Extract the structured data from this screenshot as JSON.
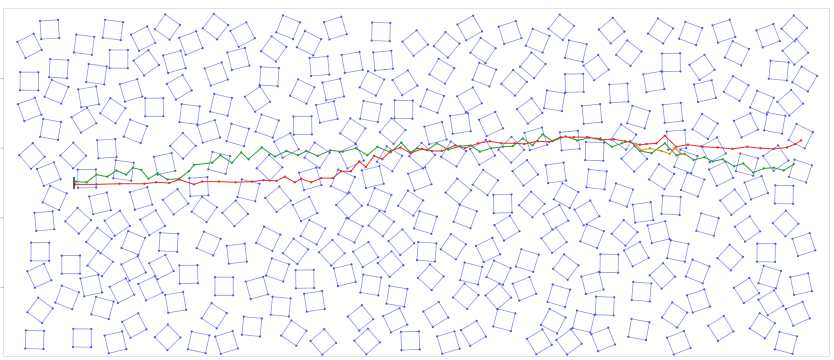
{
  "chart_data": {
    "type": "diagram",
    "title": "",
    "xlabel": "",
    "ylabel": "",
    "xlim": [
      0,
      1000
    ],
    "ylim": [
      0,
      500
    ],
    "grid": false,
    "legend": "none",
    "colors": {
      "obstacle": "#8f95e8",
      "obstacle_corner": "#4f57d8",
      "path_green": "#2e9a3a",
      "path_red": "#e0322e",
      "path_orange": "#e08a1a",
      "start_marker": "#111111",
      "frame": "#e2e2e2"
    },
    "y_ticks": [
      100,
      200,
      300,
      400
    ],
    "obstacles": {
      "count": 420,
      "shape": "rotated-square",
      "side": 22,
      "seed": 7
    },
    "paths": [
      {
        "name": "",
        "color": "#2e9a3a",
        "points": [
          [
            87,
            248
          ],
          [
            100,
            249
          ],
          [
            112,
            238
          ],
          [
            125,
            241
          ],
          [
            136,
            232
          ],
          [
            148,
            238
          ],
          [
            156,
            228
          ],
          [
            166,
            231
          ],
          [
            175,
            244
          ],
          [
            186,
            236
          ],
          [
            198,
            245
          ],
          [
            212,
            244
          ],
          [
            224,
            233
          ],
          [
            230,
            224
          ],
          [
            252,
            221
          ],
          [
            262,
            210
          ],
          [
            276,
            221
          ],
          [
            287,
            206
          ],
          [
            296,
            216
          ],
          [
            312,
            199
          ],
          [
            328,
            212
          ],
          [
            342,
            204
          ],
          [
            356,
            210
          ],
          [
            366,
            204
          ],
          [
            380,
            211
          ],
          [
            395,
            203
          ],
          [
            410,
            205
          ],
          [
            426,
            200
          ],
          [
            440,
            210
          ],
          [
            452,
            198
          ],
          [
            468,
            206
          ],
          [
            481,
            192
          ],
          [
            492,
            206
          ],
          [
            500,
            200
          ],
          [
            512,
            203
          ],
          [
            524,
            193
          ],
          [
            538,
            202
          ],
          [
            552,
            197
          ],
          [
            565,
            196
          ],
          [
            576,
            205
          ],
          [
            590,
            200
          ],
          [
            604,
            198
          ],
          [
            616,
            197
          ],
          [
            628,
            186
          ],
          [
            640,
            196
          ],
          [
            652,
            180
          ],
          [
            664,
            190
          ],
          [
            680,
            183
          ],
          [
            694,
            189
          ],
          [
            708,
            185
          ],
          [
            722,
            186
          ],
          [
            736,
            198
          ],
          [
            748,
            193
          ],
          [
            758,
            190
          ],
          [
            770,
            204
          ],
          [
            784,
            207
          ],
          [
            800,
            193
          ],
          [
            814,
            210
          ],
          [
            824,
            208
          ],
          [
            835,
            217
          ],
          [
            848,
            213
          ],
          [
            858,
            219
          ],
          [
            870,
            216
          ],
          [
            884,
            226
          ],
          [
            895,
            222
          ],
          [
            907,
            235
          ],
          [
            920,
            229
          ],
          [
            932,
            228
          ],
          [
            944,
            232
          ],
          [
            956,
            223
          ]
        ]
      },
      {
        "name": "",
        "color": "#e0322e",
        "points": [
          [
            86,
            252
          ],
          [
            112,
            252
          ],
          [
            140,
            251
          ],
          [
            170,
            251
          ],
          [
            184,
            249
          ],
          [
            200,
            250
          ],
          [
            212,
            245
          ],
          [
            230,
            252
          ],
          [
            240,
            248
          ],
          [
            260,
            248
          ],
          [
            280,
            249
          ],
          [
            300,
            248
          ],
          [
            314,
            246
          ],
          [
            330,
            247
          ],
          [
            340,
            241
          ],
          [
            352,
            249
          ],
          [
            360,
            244
          ],
          [
            372,
            249
          ],
          [
            384,
            243
          ],
          [
            398,
            243
          ],
          [
            408,
            233
          ],
          [
            420,
            233
          ],
          [
            430,
            219
          ],
          [
            438,
            227
          ],
          [
            448,
            211
          ],
          [
            458,
            216
          ],
          [
            468,
            204
          ],
          [
            480,
            199
          ],
          [
            492,
            207
          ],
          [
            506,
            201
          ],
          [
            518,
            204
          ],
          [
            530,
            204
          ],
          [
            546,
            196
          ],
          [
            558,
            200
          ],
          [
            574,
            193
          ],
          [
            588,
            190
          ],
          [
            602,
            193
          ],
          [
            618,
            193
          ],
          [
            630,
            194
          ],
          [
            646,
            190
          ],
          [
            660,
            191
          ],
          [
            674,
            184
          ],
          [
            690,
            184
          ],
          [
            706,
            184
          ],
          [
            722,
            188
          ],
          [
            738,
            187
          ],
          [
            752,
            190
          ],
          [
            770,
            195
          ],
          [
            778,
            194
          ],
          [
            790,
            193
          ],
          [
            800,
            182
          ],
          [
            814,
            198
          ],
          [
            828,
            195
          ],
          [
            846,
            198
          ],
          [
            864,
            199
          ],
          [
            882,
            201
          ],
          [
            900,
            198
          ],
          [
            916,
            200
          ],
          [
            932,
            201
          ],
          [
            948,
            199
          ],
          [
            958,
            194
          ],
          [
            965,
            189
          ]
        ]
      },
      {
        "name": "",
        "color": "#e08a1a",
        "points": [
          [
            764,
            194
          ],
          [
            772,
            203
          ],
          [
            782,
            200
          ],
          [
            796,
            204
          ],
          [
            806,
            208
          ],
          [
            812,
            200
          ],
          [
            820,
            208
          ]
        ]
      }
    ],
    "start_marker": [
      86,
      250
    ]
  }
}
